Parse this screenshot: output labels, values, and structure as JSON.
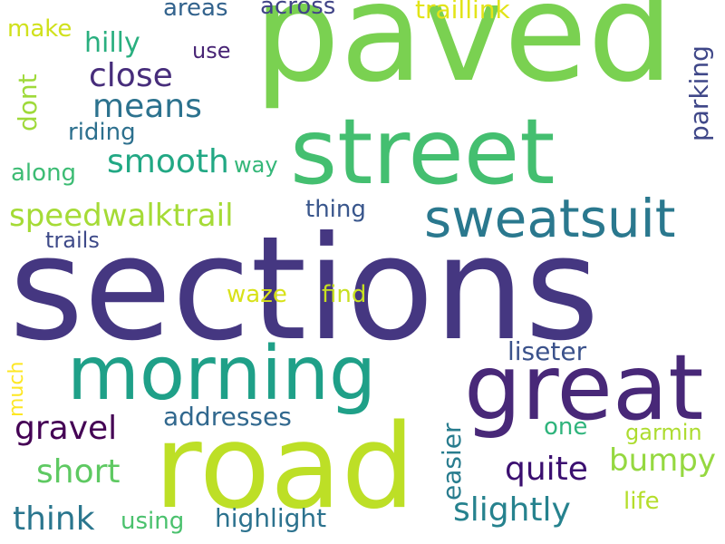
{
  "words": {
    "sections": {
      "text": "sections",
      "color": "#453781"
    },
    "paved": {
      "text": "paved",
      "color": "#7ad151"
    },
    "road": {
      "text": "road",
      "color": "#bddf26"
    },
    "street": {
      "text": "street",
      "color": "#44bf70"
    },
    "great": {
      "text": "great",
      "color": "#482878"
    },
    "morning": {
      "text": "morning",
      "color": "#1fa088"
    },
    "sweatsuit": {
      "text": "sweatsuit",
      "color": "#2a788e"
    },
    "speedwalktrail": {
      "text": "speedwalktrail",
      "color": "#a5db36"
    },
    "close": {
      "text": "close",
      "color": "#472d7b"
    },
    "means": {
      "text": "means",
      "color": "#2c728e"
    },
    "smooth": {
      "text": "smooth",
      "color": "#22a884"
    },
    "gravel": {
      "text": "gravel",
      "color": "#440154"
    },
    "short": {
      "text": "short",
      "color": "#5ec962"
    },
    "think": {
      "text": "think",
      "color": "#2a768e"
    },
    "slightly": {
      "text": "slightly",
      "color": "#26828e"
    },
    "quite": {
      "text": "quite",
      "color": "#3b0f70"
    },
    "bumpy": {
      "text": "bumpy",
      "color": "#95d840"
    },
    "hilly": {
      "text": "hilly",
      "color": "#29af7f"
    },
    "traillink": {
      "text": "traillink",
      "color": "#e2e418"
    },
    "addresses": {
      "text": "addresses",
      "color": "#31688e"
    },
    "highlight": {
      "text": "highlight",
      "color": "#2c728e"
    },
    "liseter": {
      "text": "liseter",
      "color": "#3b528b"
    },
    "across": {
      "text": "across",
      "color": "#414487"
    },
    "areas": {
      "text": "areas",
      "color": "#33638d"
    },
    "make": {
      "text": "make",
      "color": "#d0e11c"
    },
    "riding": {
      "text": "riding",
      "color": "#2d708e"
    },
    "along": {
      "text": "along",
      "color": "#3dbc74"
    },
    "thing": {
      "text": "thing",
      "color": "#39568c"
    },
    "find": {
      "text": "find",
      "color": "#c8e020"
    },
    "waze": {
      "text": "waze",
      "color": "#d8e219"
    },
    "one": {
      "text": "one",
      "color": "#2fb47c"
    },
    "life": {
      "text": "life",
      "color": "#b5de2b"
    },
    "using": {
      "text": "using",
      "color": "#4ac16d"
    },
    "use": {
      "text": "use",
      "color": "#482475"
    },
    "way": {
      "text": "way",
      "color": "#35b779"
    },
    "trails": {
      "text": "trails",
      "color": "#3e4a89"
    },
    "garmin": {
      "text": "garmin",
      "color": "#addc30"
    },
    "dont": {
      "text": "dont",
      "color": "#9fda3a"
    },
    "parking": {
      "text": "parking",
      "color": "#3f4788"
    },
    "much": {
      "text": "much",
      "color": "#fde725"
    },
    "easier": {
      "text": "easier",
      "color": "#287c8e"
    }
  }
}
